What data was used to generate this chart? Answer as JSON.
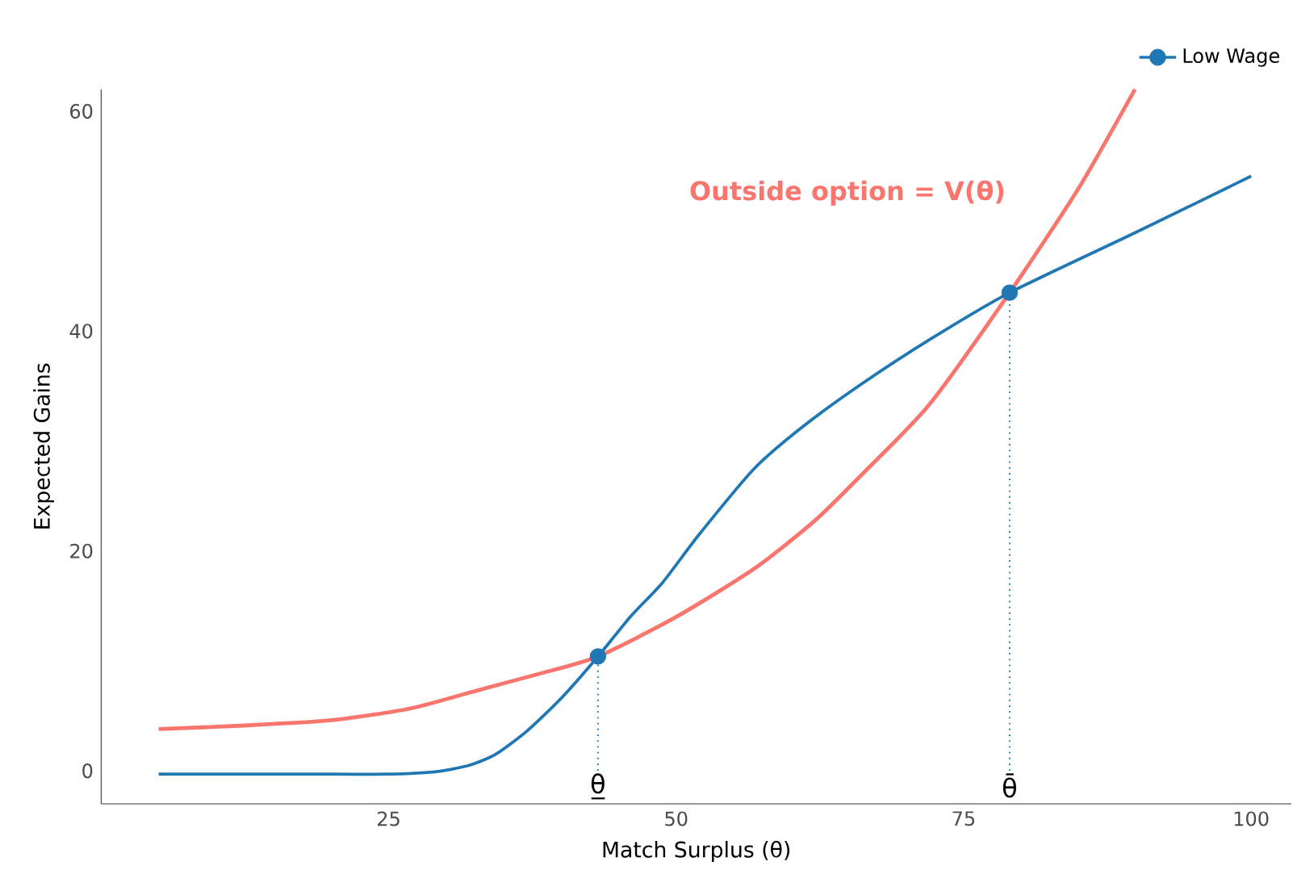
{
  "chart_data": {
    "type": "line",
    "xlabel": "Match Surplus (θ)",
    "ylabel": "Expected Gains",
    "xlim": [
      0,
      103.5
    ],
    "ylim": [
      -3,
      62
    ],
    "xticks": [
      25,
      50,
      75,
      100
    ],
    "yticks": [
      0,
      20,
      40,
      60
    ],
    "grid": false,
    "legend": "top right",
    "line_style": "solid",
    "series": [
      {
        "name": "Low Wage",
        "color": "#1f77b4",
        "x": [
          5,
          20,
          25,
          29,
          32,
          34.3,
          37,
          40,
          43.2,
          46,
          48.8,
          52,
          56.8,
          61,
          66,
          72,
          79,
          90,
          100
        ],
        "values": [
          -0.3,
          -0.3,
          -0.3,
          -0.1,
          0.5,
          1.5,
          3.6,
          6.6,
          10.4,
          14,
          17.1,
          21.5,
          27.5,
          31.3,
          35.1,
          39.2,
          43.5,
          49,
          54.1
        ]
      },
      {
        "color": "#f8766d",
        "x": [
          5,
          12,
          20,
          27,
          33,
          38,
          43.2,
          50,
          56.8,
          62,
          66,
          72,
          79,
          85,
          89.9
        ],
        "values": [
          3.8,
          4.1,
          4.6,
          5.7,
          7.4,
          8.8,
          10.4,
          14,
          18.4,
          22.7,
          26.8,
          33.3,
          43.5,
          53,
          62
        ]
      },
      {
        "type": "scatter",
        "marker": "circle",
        "color": "#1f77b4",
        "x": [
          43.2,
          79
        ],
        "values": [
          10.4,
          43.5
        ]
      }
    ],
    "ref_lines": [
      {
        "axis": "x",
        "value": 43.2,
        "label": "θ̲",
        "color": "#1f77b4",
        "line_style": "dotted"
      },
      {
        "axis": "x",
        "value": 79,
        "label": "θ̄",
        "color": "#1f77b4",
        "line_style": "dotted"
      }
    ],
    "annotations": [
      "**Outside option = V(θ)**"
    ]
  }
}
